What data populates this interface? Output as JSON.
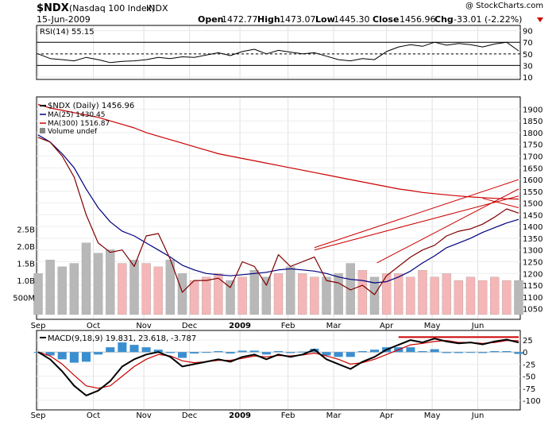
{
  "header": {
    "symbol": "$NDX",
    "name": "(Nasdaq 100 Index)",
    "exchange": "INDX",
    "date": "15-Jun-2009",
    "open_label": "Open",
    "open": "1472.77",
    "high_label": "High",
    "high": "1473.07",
    "low_label": "Low",
    "low": "1445.30",
    "close_label": "Close",
    "close": "1456.96",
    "chg_label": "Chg",
    "chg": "-33.01 (-2.22%)",
    "watermark": "@ StockCharts.com"
  },
  "rsi": {
    "label": "RSI(14) 55.15",
    "ticks": [
      "90",
      "70",
      "50",
      "30",
      "10"
    ],
    "tick_values": [
      90,
      70,
      50,
      30,
      10
    ],
    "levels": [
      70,
      30
    ]
  },
  "price": {
    "legend": [
      {
        "text": "$NDX (Daily) 1456.96",
        "color": "#000000"
      },
      {
        "text": "MA(25) 1430.45",
        "color": "#000080"
      },
      {
        "text": "MA(300) 1516.87",
        "color": "#cc0000"
      },
      {
        "text": "Volume undef",
        "color": "#000000"
      }
    ],
    "yticks": [
      "1900",
      "1850",
      "1800",
      "1750",
      "1700",
      "1650",
      "1600",
      "1550",
      "1500",
      "1450",
      "1400",
      "1350",
      "1300",
      "1250",
      "1200",
      "1150",
      "1100",
      "1050"
    ],
    "volume_ticks": [
      "2.5B",
      "2.0B",
      "1.5B",
      "1.0B",
      "500M"
    ],
    "volume_tick_values": [
      2.5,
      2.0,
      1.5,
      1.0,
      0.5
    ]
  },
  "macd": {
    "label_main": "MACD(9,18,9) 19.831,",
    "label_signal": "23.618,",
    "label_hist": "-3.787",
    "ticks": [
      "25",
      "0",
      "-25",
      "-50",
      "-75",
      "-100"
    ],
    "tick_values": [
      25,
      0,
      -25,
      -50,
      -75,
      -100
    ]
  },
  "months": [
    "Sep",
    "Oct",
    "Nov",
    "Dec",
    "2009",
    "Feb",
    "Mar",
    "Apr",
    "May",
    "Jun"
  ],
  "colors": {
    "price": "#800000",
    "ma25": "#000080",
    "ma300": "#cc0000",
    "up_volume": "#f4b6b6",
    "down_volume": "#b8b8b8",
    "macd_hist": "#3a8fd0",
    "trendline": "#cc0000"
  },
  "chart_data": {
    "type": "line",
    "title": "$NDX (Nasdaq 100 Index) INDX",
    "x": [
      0,
      5,
      10,
      15,
      20,
      25,
      30,
      35,
      40,
      45,
      50,
      55,
      60,
      65,
      70,
      75,
      80,
      85,
      90,
      95,
      100,
      105,
      110,
      115,
      120,
      125,
      130,
      135,
      140,
      145,
      150,
      155,
      160,
      165,
      170,
      175,
      180,
      185,
      190,
      195,
      200
    ],
    "x_months": {
      "Sep": 0,
      "Oct": 23,
      "Nov": 44,
      "Dec": 63,
      "2009": 84,
      "Feb": 104,
      "Mar": 123,
      "Apr": 145,
      "May": 164,
      "Jun": 183
    },
    "series": [
      {
        "name": "$NDX (Daily)",
        "values": [
          1780,
          1760,
          1700,
          1610,
          1450,
          1330,
          1290,
          1300,
          1230,
          1360,
          1370,
          1260,
          1120,
          1170,
          1170,
          1180,
          1140,
          1250,
          1230,
          1150,
          1280,
          1230,
          1250,
          1270,
          1170,
          1160,
          1130,
          1150,
          1110,
          1190,
          1230,
          1270,
          1300,
          1320,
          1360,
          1380,
          1390,
          1410,
          1440,
          1475,
          1456.96
        ]
      },
      {
        "name": "MA(25)",
        "values": [
          1790,
          1760,
          1710,
          1650,
          1560,
          1480,
          1420,
          1380,
          1360,
          1330,
          1300,
          1270,
          1235,
          1215,
          1200,
          1195,
          1190,
          1195,
          1200,
          1205,
          1215,
          1220,
          1215,
          1210,
          1200,
          1185,
          1175,
          1170,
          1160,
          1165,
          1185,
          1210,
          1245,
          1275,
          1310,
          1330,
          1350,
          1375,
          1395,
          1415,
          1430.45
        ]
      },
      {
        "name": "MA(300)",
        "values": [
          1920,
          1905,
          1895,
          1885,
          1875,
          1865,
          1850,
          1835,
          1820,
          1800,
          1785,
          1770,
          1755,
          1740,
          1725,
          1710,
          1700,
          1690,
          1680,
          1670,
          1660,
          1650,
          1640,
          1630,
          1620,
          1610,
          1600,
          1590,
          1580,
          1570,
          1560,
          1553,
          1545,
          1540,
          1535,
          1530,
          1526,
          1523,
          1520,
          1518,
          1516.87
        ]
      },
      {
        "name": "RSI(14)",
        "values": [
          50,
          42,
          40,
          38,
          44,
          40,
          35,
          37,
          38,
          40,
          44,
          42,
          45,
          44,
          48,
          52,
          47,
          54,
          58,
          50,
          56,
          53,
          50,
          52,
          46,
          40,
          38,
          42,
          40,
          54,
          62,
          66,
          63,
          70,
          65,
          68,
          66,
          62,
          67,
          70,
          55.15
        ]
      },
      {
        "name": "MACD",
        "values": [
          0,
          -15,
          -40,
          -70,
          -90,
          -80,
          -60,
          -30,
          -15,
          -5,
          0,
          -10,
          -30,
          -25,
          -20,
          -15,
          -20,
          -10,
          -5,
          -15,
          -5,
          -10,
          -5,
          5,
          -15,
          -25,
          -35,
          -20,
          -10,
          5,
          15,
          25,
          20,
          28,
          22,
          18,
          20,
          16,
          22,
          26,
          19.831
        ]
      },
      {
        "name": "Signal",
        "values": [
          0,
          -8,
          -25,
          -48,
          -70,
          -75,
          -70,
          -50,
          -30,
          -15,
          -5,
          -8,
          -18,
          -22,
          -20,
          -17,
          -17,
          -13,
          -8,
          -10,
          -7,
          -8,
          -6,
          -2,
          -8,
          -15,
          -25,
          -22,
          -15,
          -5,
          5,
          15,
          18,
          22,
          24,
          20,
          20,
          18,
          20,
          24,
          23.618
        ]
      }
    ],
    "volume_billions": [
      1.2,
      1.6,
      1.4,
      1.5,
      2.1,
      1.8,
      1.9,
      1.5,
      1.6,
      1.5,
      1.4,
      1.6,
      1.2,
      1.0,
      1.1,
      1.2,
      1.0,
      1.1,
      1.3,
      1.1,
      1.2,
      1.4,
      1.2,
      1.1,
      1.1,
      1.2,
      1.5,
      1.3,
      1.1,
      1.2,
      1.2,
      1.1,
      1.3,
      1.1,
      1.2,
      1.0,
      1.1,
      1.0,
      1.1,
      1.0,
      1.0
    ],
    "ylim_price": [
      1025,
      1925
    ],
    "ylim_rsi": [
      10,
      95
    ],
    "ylim_macd": [
      -110,
      35
    ],
    "ylim_volume_billions": [
      0,
      2.7
    ]
  }
}
